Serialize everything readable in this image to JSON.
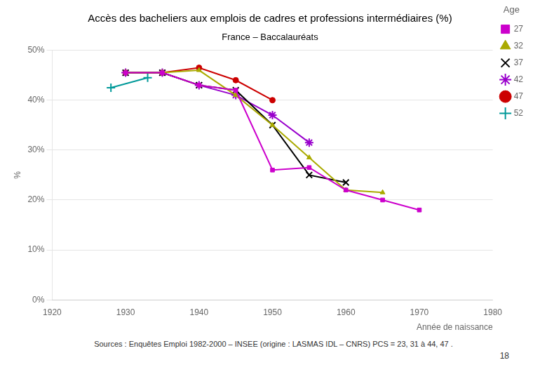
{
  "chart_data": {
    "type": "line",
    "title": "Accès des bacheliers aux emplois de cadres et professions intermédiaires (%)",
    "subtitle": "France – Baccalauréats",
    "x_label": "Année de naissance",
    "y_label": "%",
    "source": "Sources : Enquêtes Emploi 1982-2000 – INSEE (origine : LASMAS IDL – CNRS) PCS = 23, 31 à 44, 47 .",
    "page_number": "18",
    "legend_title": "Age",
    "legend": "right",
    "grid": "y",
    "xlim": [
      1920,
      1980
    ],
    "ylim": [
      0,
      0.5
    ],
    "xticks": [
      1920,
      1930,
      1940,
      1950,
      1960,
      1970,
      1980
    ],
    "yticks": [
      {
        "value": 0.0,
        "label": "0%"
      },
      {
        "value": 0.1,
        "label": "10%"
      },
      {
        "value": 0.2,
        "label": "20%"
      },
      {
        "value": 0.3,
        "label": "30%"
      },
      {
        "value": 0.4,
        "label": "40%"
      },
      {
        "value": 0.5,
        "label": "50%"
      }
    ],
    "series": [
      {
        "name": "27",
        "color": "#cc00cc",
        "marker": "square",
        "x": [
          1930,
          1935,
          1940,
          1945,
          1950,
          1955,
          1960,
          1965,
          1970
        ],
        "values": [
          0.455,
          0.455,
          0.43,
          0.42,
          0.26,
          0.265,
          0.22,
          0.2,
          0.18
        ]
      },
      {
        "name": "32",
        "color": "#aaaa00",
        "marker": "triangle",
        "x": [
          1930,
          1935,
          1940,
          1945,
          1950,
          1955,
          1960,
          1965
        ],
        "values": [
          0.455,
          0.455,
          0.46,
          0.41,
          0.35,
          0.285,
          0.22,
          0.215
        ]
      },
      {
        "name": "37",
        "color": "#000000",
        "marker": "x",
        "x": [
          1930,
          1935,
          1940,
          1945,
          1950,
          1955,
          1960
        ],
        "values": [
          0.455,
          0.455,
          0.43,
          0.42,
          0.35,
          0.25,
          0.235
        ]
      },
      {
        "name": "42",
        "color": "#9900cc",
        "marker": "star",
        "x": [
          1930,
          1935,
          1940,
          1945,
          1950,
          1955
        ],
        "values": [
          0.455,
          0.455,
          0.43,
          0.41,
          0.37,
          0.315
        ]
      },
      {
        "name": "47",
        "color": "#cc0000",
        "marker": "circle",
        "x": [
          1930,
          1935,
          1940,
          1945,
          1950
        ],
        "values": [
          0.455,
          0.455,
          0.465,
          0.44,
          0.4
        ]
      },
      {
        "name": "52",
        "color": "#009999",
        "marker": "plus",
        "x": [
          1928,
          1933
        ],
        "values": [
          0.425,
          0.445
        ]
      }
    ]
  }
}
